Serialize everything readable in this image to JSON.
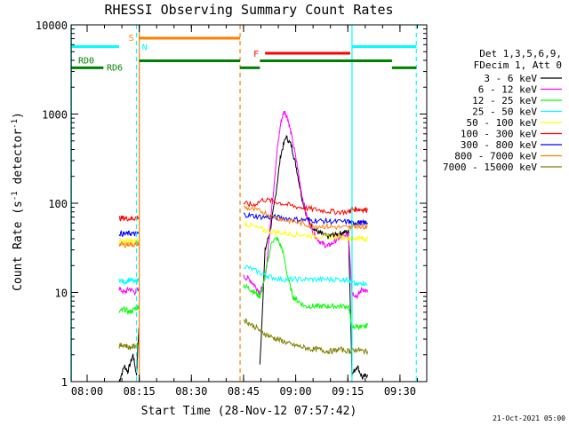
{
  "chart_data": {
    "type": "line",
    "title": "RHESSI Observing Summary Count Rates",
    "xlabel": "Start Time (28-Nov-12 07:57:42)",
    "ylabel": "Count Rate (s⁻¹ detector⁻¹)",
    "ylabel_main": "Count Rate (s",
    "ylabel_sup1": "-1",
    "ylabel_mid": " detector",
    "ylabel_sup2": "-1",
    "ylabel_end": ")",
    "y_scale": "log",
    "xlim_min": [
      -2.3,
      100
    ],
    "ylim": [
      1,
      10000
    ],
    "x_unit": "minutes after 07:57:42",
    "x_ticks": [
      {
        "label": "08:00",
        "min": 2.3
      },
      {
        "label": "08:15",
        "min": 17.3
      },
      {
        "label": "08:30",
        "min": 32.3
      },
      {
        "label": "08:45",
        "min": 47.3
      },
      {
        "label": "09:00",
        "min": 62.3
      },
      {
        "label": "09:15",
        "min": 77.3
      },
      {
        "label": "09:30",
        "min": 92.3
      }
    ],
    "y_ticks": [
      {
        "label": "1",
        "value": 1
      },
      {
        "label": "10",
        "value": 10
      },
      {
        "label": "100",
        "value": 100
      },
      {
        "label": "1000",
        "value": 1000
      },
      {
        "label": "10000",
        "value": 10000
      }
    ],
    "legend_title": [
      "Det 1,3,5,6,9,",
      "FDecim 1, Att 0"
    ],
    "legend_position": "right",
    "series": [
      {
        "name": "3 - 6 keV",
        "color": "#000000",
        "segments": [
          [
            [
              11.5,
              1
            ],
            [
              13,
              1.5
            ],
            [
              14,
              1.3
            ],
            [
              15.5,
              2
            ],
            [
              16.5,
              1.2
            ],
            [
              17.2,
              4
            ]
          ],
          [
            [
              52,
              1.5
            ],
            [
              53.5,
              30
            ],
            [
              55,
              50
            ],
            [
              56.5,
              120
            ],
            [
              58,
              350
            ],
            [
              59.5,
              560
            ],
            [
              61,
              450
            ],
            [
              62.5,
              250
            ],
            [
              64,
              120
            ],
            [
              65.5,
              70
            ],
            [
              67,
              55
            ],
            [
              68.5,
              48
            ],
            [
              70,
              45
            ],
            [
              71.5,
              42
            ],
            [
              73,
              44
            ],
            [
              74.5,
              45
            ],
            [
              76,
              47
            ],
            [
              77.5,
              48
            ],
            [
              78.5,
              1.2
            ],
            [
              80,
              1.5
            ],
            [
              81.5,
              1.1
            ],
            [
              83,
              1.2
            ]
          ]
        ]
      },
      {
        "name": "6 - 12 keV",
        "color": "#ff00ff",
        "segments": [
          [
            [
              11.5,
              11
            ],
            [
              13,
              10
            ],
            [
              14.5,
              11
            ],
            [
              16,
              10
            ],
            [
              17.2,
              11
            ]
          ],
          [
            [
              47.3,
              15
            ],
            [
              49,
              14
            ],
            [
              50.5,
              12
            ],
            [
              52,
              10
            ],
            [
              53,
              12
            ],
            [
              54,
              20
            ],
            [
              55,
              60
            ],
            [
              56,
              150
            ],
            [
              57,
              400
            ],
            [
              58,
              800
            ],
            [
              59,
              1080
            ],
            [
              60,
              900
            ],
            [
              61,
              600
            ],
            [
              62.5,
              300
            ],
            [
              64,
              130
            ],
            [
              65.5,
              70
            ],
            [
              67,
              50
            ],
            [
              68.5,
              40
            ],
            [
              70,
              35
            ],
            [
              71.5,
              33
            ],
            [
              73,
              36
            ],
            [
              74.5,
              40
            ],
            [
              76,
              42
            ],
            [
              77.5,
              45
            ],
            [
              78.5,
              10
            ],
            [
              80,
              9
            ],
            [
              81.5,
              11
            ],
            [
              83,
              10
            ]
          ]
        ]
      },
      {
        "name": "12 - 25 keV",
        "color": "#00ff00",
        "segments": [
          [
            [
              11.5,
              6
            ],
            [
              13,
              6.5
            ],
            [
              14.5,
              6
            ],
            [
              16,
              6.5
            ],
            [
              17.2,
              7
            ]
          ],
          [
            [
              47.3,
              12
            ],
            [
              49,
              11
            ],
            [
              50.5,
              10
            ],
            [
              52,
              9
            ],
            [
              53,
              12
            ],
            [
              54,
              20
            ],
            [
              55.5,
              38
            ],
            [
              57,
              40
            ],
            [
              58.5,
              30
            ],
            [
              60,
              15
            ],
            [
              61.5,
              9
            ],
            [
              63,
              8
            ],
            [
              65,
              7
            ],
            [
              67,
              7
            ],
            [
              69,
              7
            ],
            [
              71,
              7
            ],
            [
              73,
              7
            ],
            [
              75,
              7
            ],
            [
              77.5,
              7
            ],
            [
              78.5,
              4
            ],
            [
              80,
              4.2
            ],
            [
              81.5,
              4
            ],
            [
              83,
              4.3
            ]
          ]
        ]
      },
      {
        "name": "25 - 50 keV",
        "color": "#00ffff",
        "segments": [
          [
            [
              11.5,
              14
            ],
            [
              13,
              13
            ],
            [
              14.5,
              14
            ],
            [
              16,
              13
            ],
            [
              17.2,
              14
            ]
          ],
          [
            [
              47.3,
              20
            ],
            [
              50,
              18
            ],
            [
              53,
              16
            ],
            [
              55,
              15
            ],
            [
              58,
              14
            ],
            [
              61,
              14
            ],
            [
              64,
              14
            ],
            [
              67,
              14
            ],
            [
              70,
              14
            ],
            [
              73,
              14
            ],
            [
              76,
              14
            ],
            [
              77.5,
              14
            ],
            [
              78.5,
              13
            ],
            [
              80,
              12
            ],
            [
              81.5,
              13
            ],
            [
              83,
              12
            ]
          ]
        ]
      },
      {
        "name": "50 - 100 keV",
        "color": "#ffff00",
        "segments": [
          [
            [
              11.5,
              38
            ],
            [
              13,
              37
            ],
            [
              14.5,
              38
            ],
            [
              16,
              37
            ],
            [
              17.2,
              38
            ]
          ],
          [
            [
              47.3,
              60
            ],
            [
              50,
              55
            ],
            [
              53,
              50
            ],
            [
              56,
              48
            ],
            [
              59,
              46
            ],
            [
              62,
              45
            ],
            [
              65,
              44
            ],
            [
              68,
              43
            ],
            [
              71,
              42
            ],
            [
              74,
              42
            ],
            [
              77.5,
              41
            ],
            [
              78.5,
              40
            ],
            [
              80,
              41
            ],
            [
              81.5,
              40
            ],
            [
              83,
              40
            ]
          ]
        ]
      },
      {
        "name": "100 - 300 keV",
        "color": "#ff0000",
        "segments": [
          [
            [
              11.5,
              68
            ],
            [
              13,
              68
            ],
            [
              14.5,
              67
            ],
            [
              16,
              68
            ],
            [
              17.2,
              70
            ]
          ],
          [
            [
              47.3,
              100
            ],
            [
              50,
              95
            ],
            [
              53,
              110
            ],
            [
              56,
              105
            ],
            [
              59,
              98
            ],
            [
              62,
              92
            ],
            [
              65,
              88
            ],
            [
              68,
              85
            ],
            [
              71,
              82
            ],
            [
              74,
              80
            ],
            [
              77.5,
              80
            ],
            [
              78.5,
              85
            ],
            [
              80,
              86
            ],
            [
              81.5,
              85
            ],
            [
              83,
              84
            ]
          ]
        ]
      },
      {
        "name": "300 - 800 keV",
        "color": "#0000ff",
        "segments": [
          [
            [
              11.5,
              46
            ],
            [
              13,
              45
            ],
            [
              14.5,
              46
            ],
            [
              16,
              45
            ],
            [
              17.2,
              46
            ]
          ],
          [
            [
              47.3,
              75
            ],
            [
              50,
              72
            ],
            [
              53,
              70
            ],
            [
              56,
              70
            ],
            [
              59,
              68
            ],
            [
              62,
              66
            ],
            [
              65,
              65
            ],
            [
              68,
              64
            ],
            [
              71,
              63
            ],
            [
              74,
              62
            ],
            [
              77.5,
              62
            ],
            [
              78.5,
              60
            ],
            [
              80,
              61
            ],
            [
              81.5,
              60
            ],
            [
              83,
              60
            ]
          ]
        ]
      },
      {
        "name": "800 - 7000 keV",
        "color": "#ff8000",
        "segments": [
          [
            [
              11.5,
              35
            ],
            [
              13,
              34
            ],
            [
              14.5,
              35
            ],
            [
              16,
              34
            ],
            [
              17.2,
              36
            ]
          ],
          [
            [
              47.3,
              90
            ],
            [
              50,
              85
            ],
            [
              53,
              80
            ],
            [
              56,
              70
            ],
            [
              59,
              65
            ],
            [
              62,
              62
            ],
            [
              65,
              58
            ],
            [
              68,
              56
            ],
            [
              71,
              55
            ],
            [
              74,
              54
            ],
            [
              77.5,
              53
            ],
            [
              78.5,
              55
            ],
            [
              80,
              56
            ],
            [
              81.5,
              55
            ],
            [
              83,
              55
            ]
          ]
        ]
      },
      {
        "name": "7000 - 15000 keV",
        "color": "#808000",
        "segments": [
          [
            [
              11.5,
              2.5
            ],
            [
              13,
              2.6
            ],
            [
              14.5,
              2.4
            ],
            [
              16,
              2.5
            ],
            [
              17.2,
              2.6
            ]
          ],
          [
            [
              47.3,
              5
            ],
            [
              49,
              4.5
            ],
            [
              51,
              4
            ],
            [
              53,
              3.5
            ],
            [
              55,
              3.2
            ],
            [
              57,
              3
            ],
            [
              59,
              2.8
            ],
            [
              61,
              2.6
            ],
            [
              63,
              2.5
            ],
            [
              65,
              2.4
            ],
            [
              67,
              2.3
            ],
            [
              69,
              2.3
            ],
            [
              71,
              2.2
            ],
            [
              73,
              2.2
            ],
            [
              75,
              2.3
            ],
            [
              77.5,
              2.2
            ],
            [
              78.5,
              2.2
            ],
            [
              80,
              2.3
            ],
            [
              81.5,
              2.2
            ],
            [
              83,
              2.2
            ]
          ]
        ]
      }
    ],
    "state_bars": [
      {
        "label": "",
        "color": "#00ffff",
        "y": 5700,
        "ranges": [
          [
            -2.3,
            11.5
          ],
          [
            78.5,
            97
          ]
        ]
      },
      {
        "label": "S",
        "color": "#ff8000",
        "y": 7100,
        "ranges": [
          [
            17.3,
            46.3
          ]
        ]
      },
      {
        "label": "N",
        "color": "#00ffff",
        "y": 5700,
        "ranges": [
          [
            17.3,
            17.5
          ]
        ]
      },
      {
        "label": "F",
        "color": "#ff0000",
        "y": 4800,
        "ranges": [
          [
            53.5,
            78
          ]
        ]
      },
      {
        "label": "RD0",
        "color": "#008000",
        "y": 3950,
        "ranges": [
          [
            17.3,
            46.3
          ],
          [
            52,
            90
          ]
        ]
      },
      {
        "label": "RD6",
        "color": "#008000",
        "y": 3300,
        "ranges": [
          [
            -2.3,
            7
          ],
          [
            46.3,
            52
          ],
          [
            90,
            97
          ]
        ]
      }
    ],
    "vlines": [
      {
        "min": -2.2,
        "color": "#00ffff",
        "style": "solid"
      },
      {
        "min": 16.5,
        "color": "#00ffff",
        "style": "dashed"
      },
      {
        "min": 17.3,
        "color": "#ff8000",
        "style": "solid"
      },
      {
        "min": 46.3,
        "color": "#ff8000",
        "style": "dashed"
      },
      {
        "min": 78.5,
        "color": "#00ffff",
        "style": "solid"
      },
      {
        "min": 97,
        "color": "#00ffff",
        "style": "dashed"
      }
    ],
    "footer_date": "21-Oct-2021 05:00"
  }
}
